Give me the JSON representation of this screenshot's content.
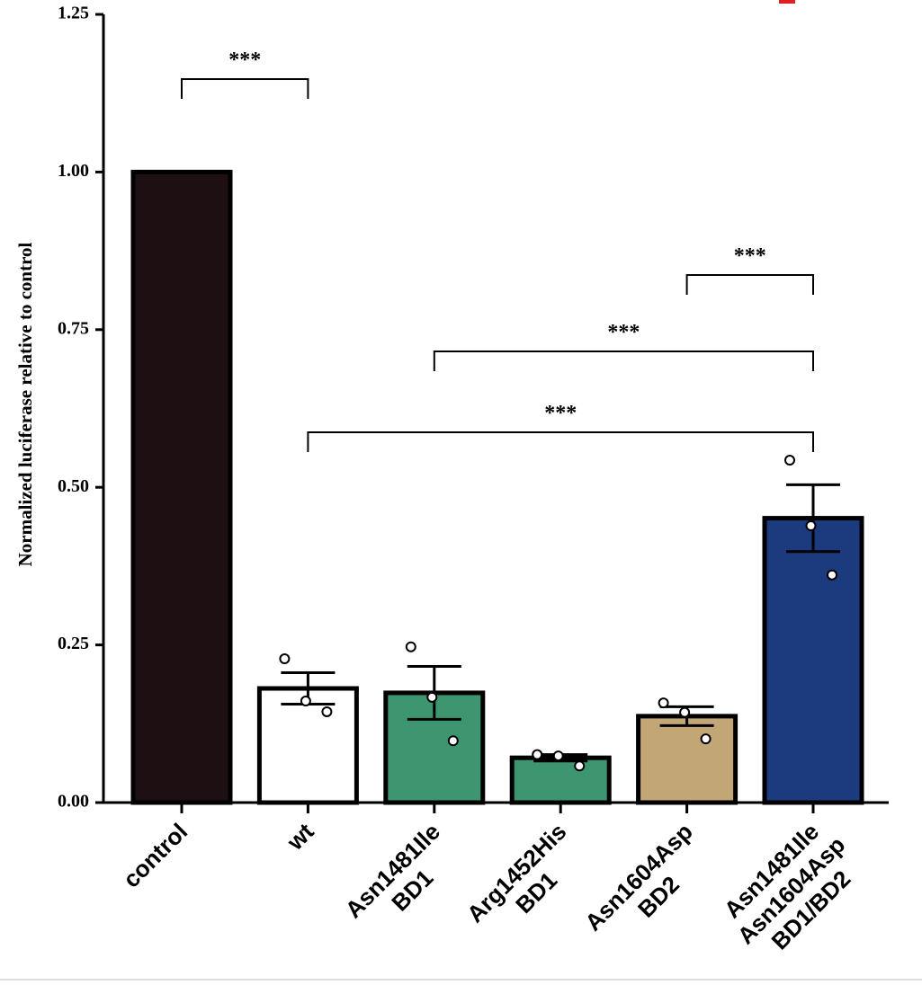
{
  "chart_data": {
    "type": "bar",
    "ylabel": "Normalized luciferase relative to control",
    "categories": [
      "control",
      "wt",
      "Asn1481Ile\nBD1",
      "Arg1452His\nBD1",
      "Asn1604Asp\nBD2",
      "Asn1481Ile\nAsn1604Asp\nBD1/BD2"
    ],
    "values": [
      1.0,
      0.181,
      0.174,
      0.071,
      0.137,
      0.451
    ],
    "errors": [
      null,
      0.025,
      0.042,
      0.005,
      0.015,
      0.053
    ],
    "points": [
      null,
      [
        0.228,
        0.161,
        0.144
      ],
      [
        0.247,
        0.167,
        0.098
      ],
      [
        0.076,
        0.074,
        0.058
      ],
      [
        0.158,
        0.143,
        0.101
      ],
      [
        0.543,
        0.439,
        0.361
      ]
    ],
    "colors": [
      "#1e0f12",
      "#ffffff",
      "#3e9670",
      "#3e9670",
      "#c2a676",
      "#1c3a7e"
    ],
    "ylim": [
      0,
      1.25
    ],
    "yticks": [
      {
        "value": 0,
        "label": "0.00"
      },
      {
        "value": 0.25,
        "label": "0.25"
      },
      {
        "value": 0.5,
        "label": "0.50"
      },
      {
        "value": 0.75,
        "label": "0.75"
      },
      {
        "value": 1.0,
        "label": "1.00"
      },
      {
        "value": 1.25,
        "label": "1.25"
      }
    ],
    "significance": [
      {
        "from": 0,
        "to": 1,
        "label": "***"
      },
      {
        "from": 4,
        "to": 5,
        "label": "***"
      },
      {
        "from": 2,
        "to": 5,
        "label": "***"
      },
      {
        "from": 1,
        "to": 5,
        "label": "***"
      }
    ]
  }
}
